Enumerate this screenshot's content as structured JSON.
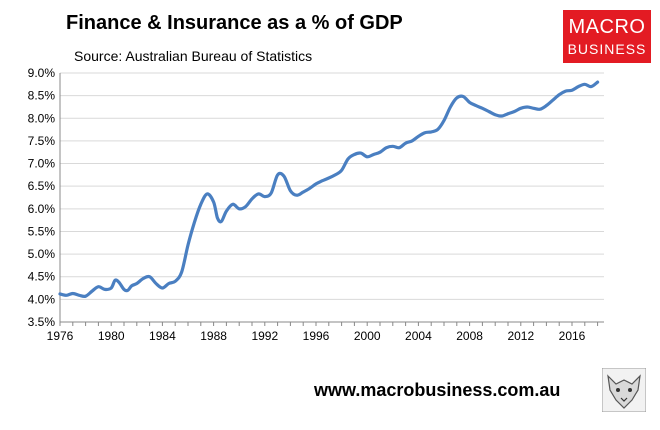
{
  "brand": {
    "logo_line1": "MACRO",
    "logo_line2": "BUSINESS",
    "accent_color": "#e31b23",
    "footer_url": "www.macrobusiness.com.au"
  },
  "chart_data": {
    "type": "line",
    "title": "Finance & Insurance as a % of GDP",
    "subtitle": "Source: Australian Bureau of Statistics",
    "xlabel": "",
    "ylabel": "",
    "xlim": [
      1976,
      2018.5
    ],
    "ylim": [
      3.5,
      9.0
    ],
    "grid": true,
    "line_color": "#4a7fc1",
    "y_ticks": [
      "3.5%",
      "4.0%",
      "4.5%",
      "5.0%",
      "5.5%",
      "6.0%",
      "6.5%",
      "7.0%",
      "7.5%",
      "8.0%",
      "8.5%",
      "9.0%"
    ],
    "y_tick_values": [
      3.5,
      4.0,
      4.5,
      5.0,
      5.5,
      6.0,
      6.5,
      7.0,
      7.5,
      8.0,
      8.5,
      9.0
    ],
    "x_ticks": [
      "1976",
      "1980",
      "1984",
      "1988",
      "1992",
      "1996",
      "2000",
      "2004",
      "2008",
      "2012",
      "2016"
    ],
    "x_tick_values": [
      1976,
      1980,
      1984,
      1988,
      1992,
      1996,
      2000,
      2004,
      2008,
      2012,
      2016
    ],
    "series": [
      {
        "name": "Finance & Insurance % of GDP",
        "x": [
          1976.0,
          1976.5,
          1977.0,
          1977.5,
          1978.0,
          1978.5,
          1979.0,
          1979.5,
          1980.0,
          1980.3,
          1980.6,
          1981.0,
          1981.3,
          1981.6,
          1982.0,
          1982.5,
          1983.0,
          1983.5,
          1984.0,
          1984.5,
          1985.0,
          1985.5,
          1986.0,
          1986.5,
          1987.0,
          1987.5,
          1988.0,
          1988.3,
          1988.6,
          1989.0,
          1989.5,
          1990.0,
          1990.5,
          1991.0,
          1991.5,
          1992.0,
          1992.5,
          1993.0,
          1993.5,
          1994.0,
          1994.5,
          1995.0,
          1995.5,
          1996.0,
          1996.5,
          1997.0,
          1997.5,
          1998.0,
          1998.5,
          1999.0,
          1999.5,
          2000.0,
          2000.5,
          2001.0,
          2001.5,
          2002.0,
          2002.5,
          2003.0,
          2003.5,
          2004.0,
          2004.5,
          2005.0,
          2005.5,
          2006.0,
          2006.5,
          2007.0,
          2007.5,
          2008.0,
          2008.5,
          2009.0,
          2009.5,
          2010.0,
          2010.5,
          2011.0,
          2011.5,
          2012.0,
          2012.5,
          2013.0,
          2013.5,
          2014.0,
          2014.5,
          2015.0,
          2015.5,
          2016.0,
          2016.5,
          2017.0,
          2017.5,
          2018.0
        ],
        "values": [
          4.12,
          4.09,
          4.13,
          4.09,
          4.07,
          4.18,
          4.28,
          4.22,
          4.25,
          4.42,
          4.38,
          4.22,
          4.2,
          4.3,
          4.35,
          4.46,
          4.5,
          4.35,
          4.25,
          4.35,
          4.4,
          4.6,
          5.2,
          5.7,
          6.1,
          6.33,
          6.15,
          5.8,
          5.72,
          5.95,
          6.1,
          6.0,
          6.05,
          6.22,
          6.33,
          6.27,
          6.35,
          6.75,
          6.72,
          6.4,
          6.3,
          6.37,
          6.45,
          6.55,
          6.62,
          6.68,
          6.75,
          6.85,
          7.1,
          7.2,
          7.23,
          7.15,
          7.2,
          7.25,
          7.35,
          7.38,
          7.35,
          7.45,
          7.5,
          7.6,
          7.68,
          7.7,
          7.75,
          7.95,
          8.25,
          8.45,
          8.48,
          8.35,
          8.28,
          8.22,
          8.15,
          8.08,
          8.05,
          8.1,
          8.15,
          8.22,
          8.25,
          8.22,
          8.2,
          8.28,
          8.4,
          8.52,
          8.6,
          8.62,
          8.7,
          8.75,
          8.7,
          8.8
        ]
      }
    ]
  }
}
